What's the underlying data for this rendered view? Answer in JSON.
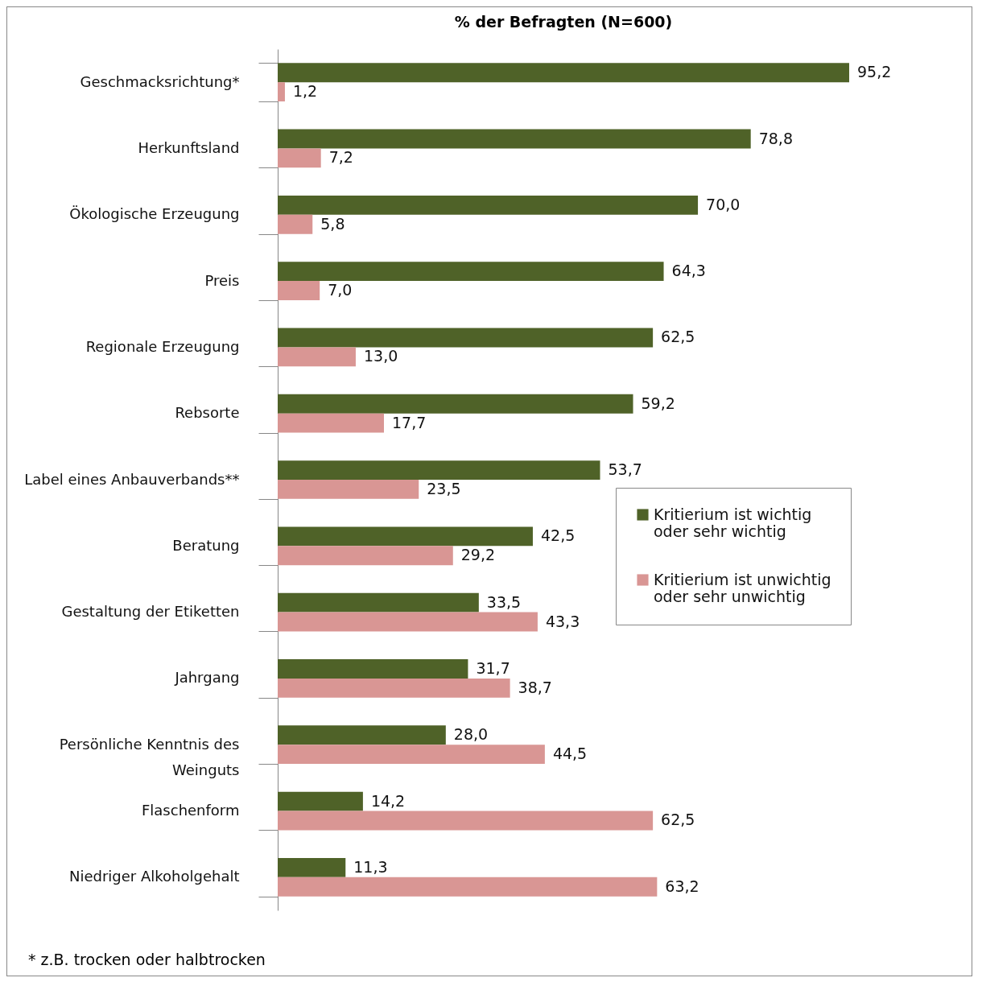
{
  "chart_data": {
    "type": "bar",
    "orientation": "horizontal",
    "title": "% der Befragten (N=600)",
    "categories": [
      "Geschmacksrichtung*",
      "Herkunftsland",
      "Ökologische Erzeugung",
      "Preis",
      "Regionale Erzeugung",
      "Rebsorte",
      "Label eines Anbauverbands**",
      "Beratung",
      "Gestaltung der Etiketten",
      "Jahrgang",
      "Persönliche Kenntnis des Weinguts",
      "Flaschenform",
      "Niedriger Alkoholgehalt"
    ],
    "series": [
      {
        "name": "Kritierium ist wichtig oder sehr wichtig",
        "color": "#4f6228",
        "values": [
          95.2,
          78.8,
          70.0,
          64.3,
          62.5,
          59.2,
          53.7,
          42.5,
          33.5,
          31.7,
          28.0,
          14.2,
          11.3
        ],
        "value_labels": [
          "95,2",
          "78,8",
          "70,0",
          "64,3",
          "62,5",
          "59,2",
          "53,7",
          "42,5",
          "33,5",
          "31,7",
          "28,0",
          "14,2",
          "11,3"
        ]
      },
      {
        "name": "Kritierium ist unwichtig oder sehr unwichtig",
        "color": "#d99694",
        "values": [
          1.2,
          7.2,
          5.8,
          7.0,
          13.0,
          17.7,
          23.5,
          29.2,
          43.3,
          38.7,
          44.5,
          62.5,
          63.2
        ],
        "value_labels": [
          "1,2",
          "7,2",
          "5,8",
          "7,0",
          "13,0",
          "17,7",
          "23,5",
          "29,2",
          "43,3",
          "38,7",
          "44,5",
          "62,5",
          "63,2"
        ]
      }
    ],
    "legend": "right",
    "tick_labels": "y",
    "annotations": [
      "* z.B. trocken oder halbtrocken"
    ]
  }
}
